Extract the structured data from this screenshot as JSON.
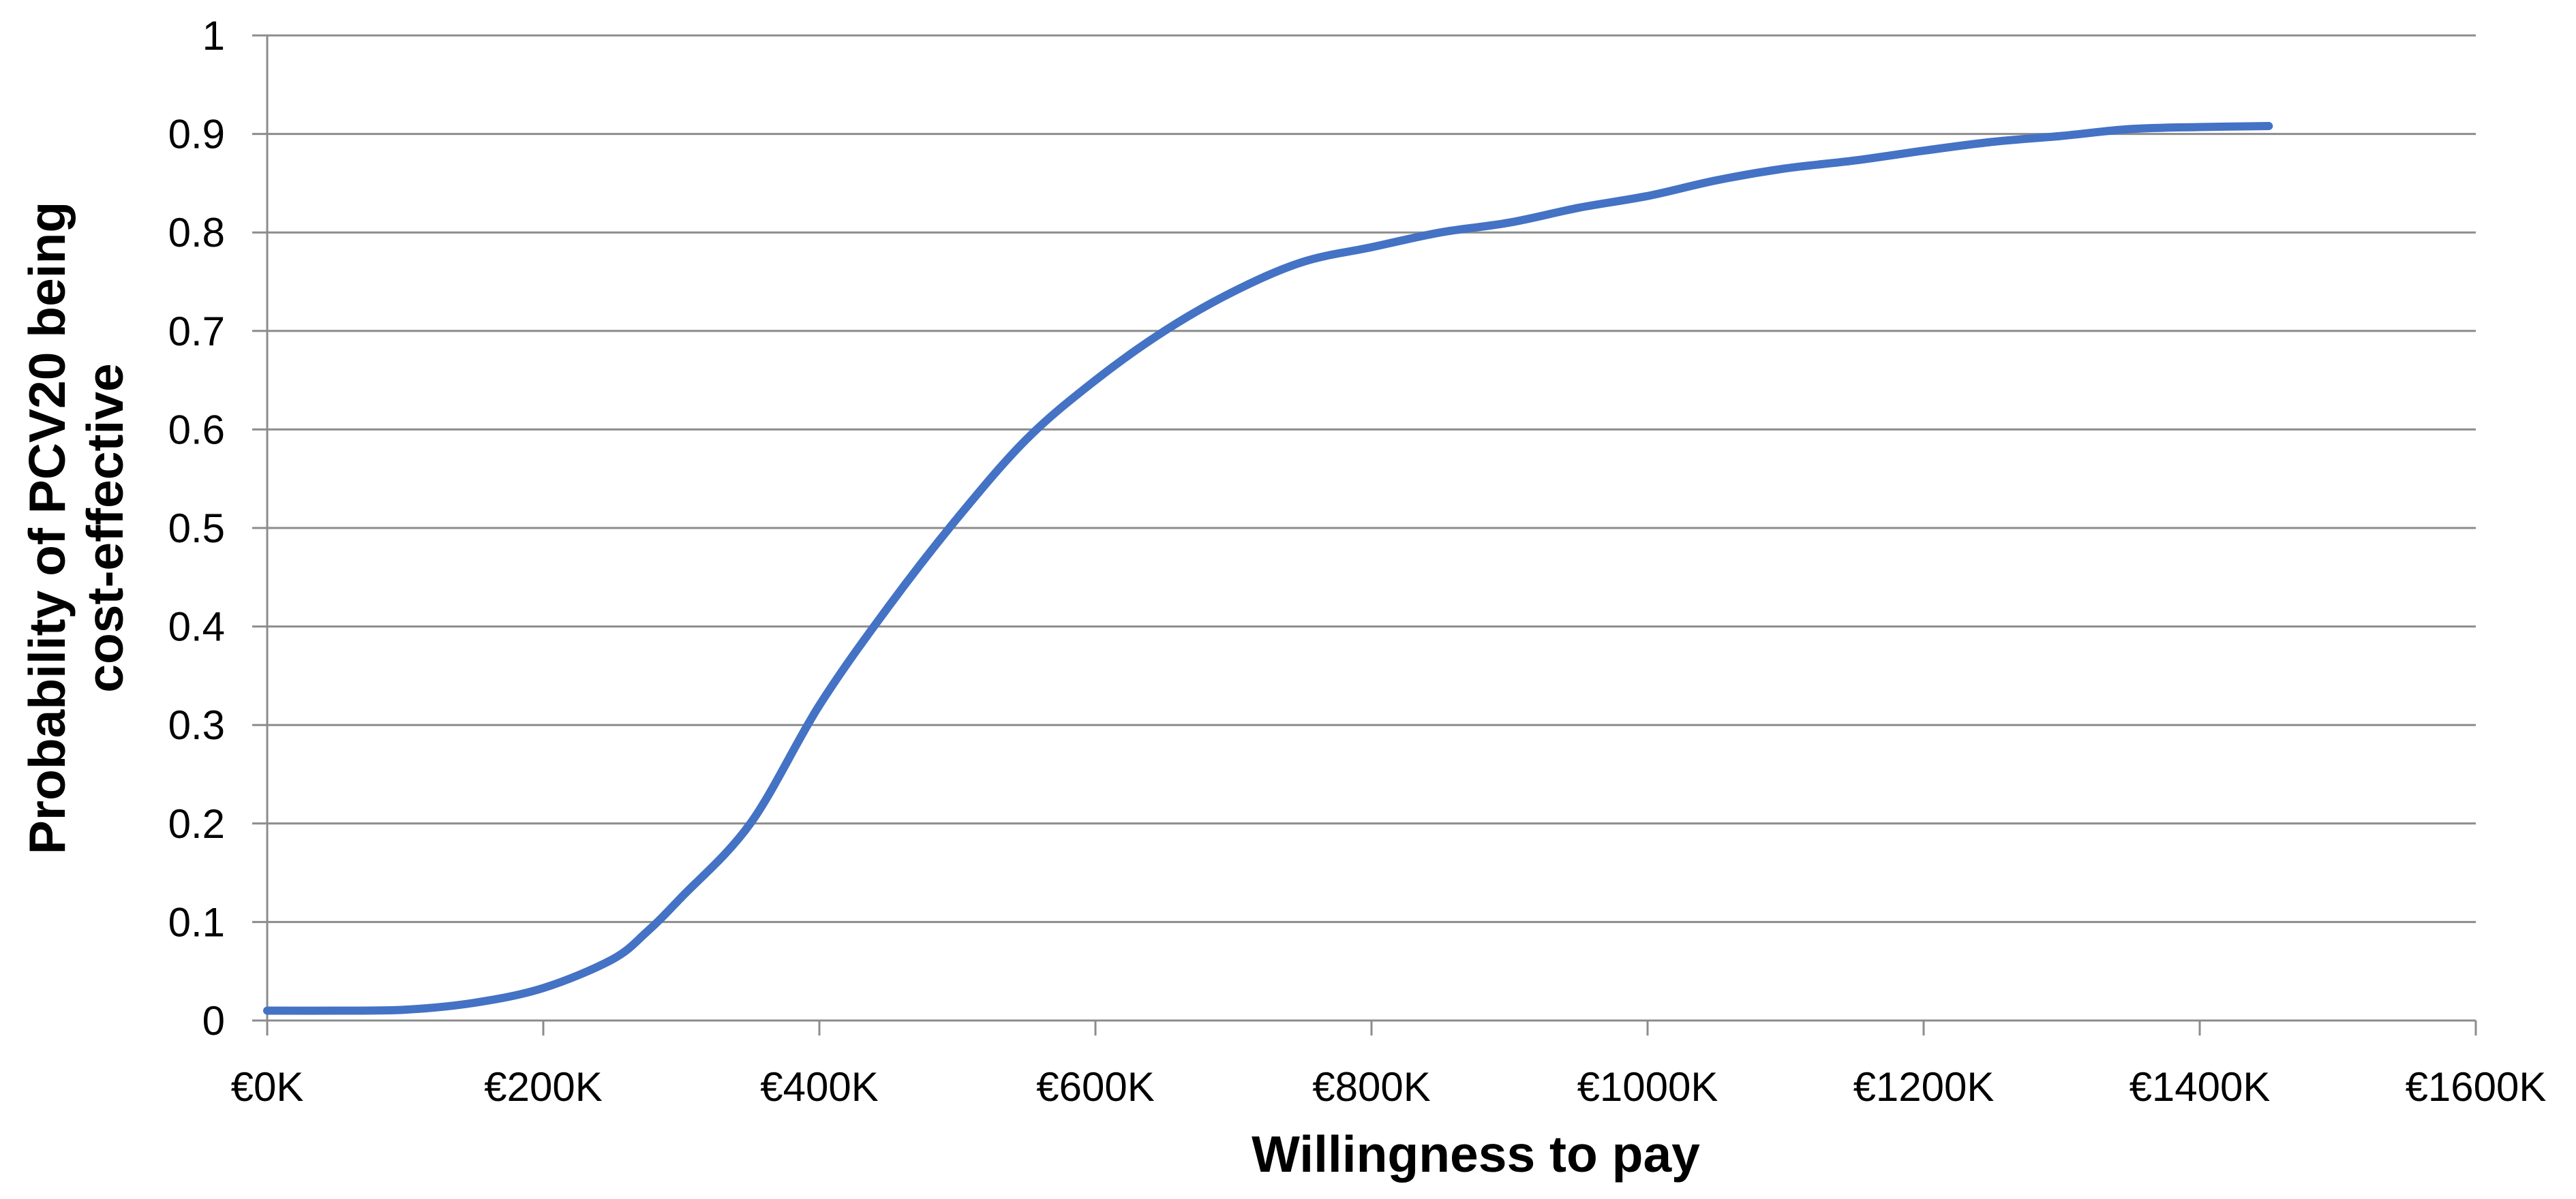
{
  "chart_data": {
    "type": "line",
    "title": "",
    "xlabel": "Willingness to pay",
    "ylabel_lines": [
      "Probability of PCV20 being",
      "cost-effective"
    ],
    "xlim": [
      0,
      1600
    ],
    "ylim": [
      0,
      1
    ],
    "x_ticks": [
      0,
      200,
      400,
      600,
      800,
      1000,
      1200,
      1400,
      1600
    ],
    "x_tick_labels": [
      "€0K",
      "€200K",
      "€400K",
      "€600K",
      "€800K",
      "€1000K",
      "€1200K",
      "€1400K",
      "€1600K"
    ],
    "y_ticks": [
      0,
      0.1,
      0.2,
      0.3,
      0.4,
      0.5,
      0.6,
      0.7,
      0.8,
      0.9,
      1
    ],
    "y_tick_labels": [
      "0",
      "0.1",
      "0.2",
      "0.3",
      "0.4",
      "0.5",
      "0.6",
      "0.7",
      "0.8",
      "0.9",
      "1"
    ],
    "grid": "horizontal",
    "legend": "none",
    "series": [
      {
        "color": "#4472C4",
        "x": [
          0,
          50,
          100,
          150,
          200,
          250,
          275,
          300,
          350,
          400,
          450,
          500,
          550,
          600,
          650,
          700,
          750,
          800,
          850,
          900,
          950,
          1000,
          1050,
          1100,
          1150,
          1200,
          1250,
          1300,
          1350,
          1400,
          1450
        ],
        "y": [
          0.01,
          0.01,
          0.011,
          0.018,
          0.033,
          0.062,
          0.09,
          0.125,
          0.2,
          0.32,
          0.42,
          0.51,
          0.59,
          0.65,
          0.7,
          0.74,
          0.77,
          0.785,
          0.8,
          0.81,
          0.825,
          0.837,
          0.853,
          0.865,
          0.873,
          0.883,
          0.892,
          0.898,
          0.905,
          0.907,
          0.908
        ]
      }
    ]
  }
}
